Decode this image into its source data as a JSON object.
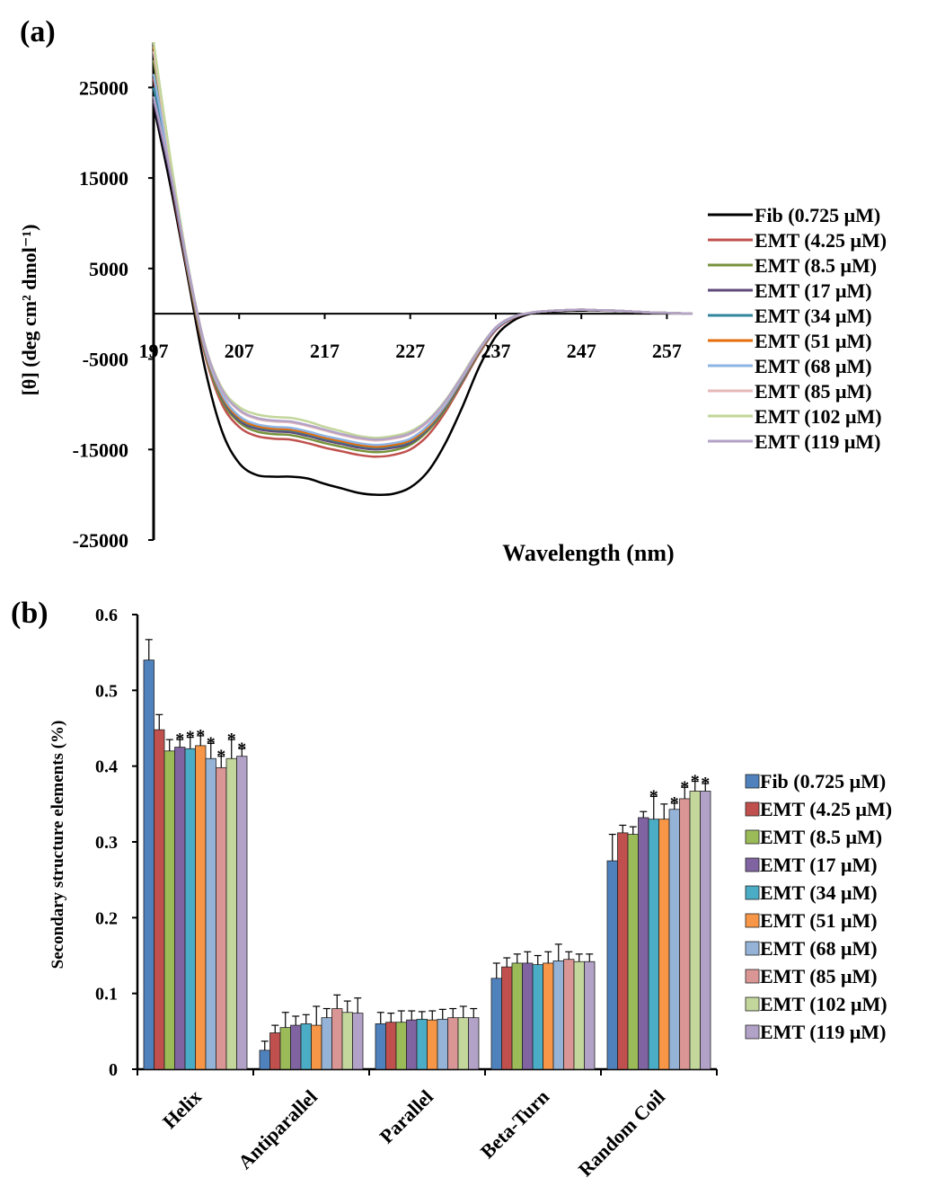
{
  "chart_data": [
    {
      "panel_label": "(a)",
      "type": "line",
      "xlabel": "Wavelength (nm)",
      "ylabel": "[θ] (deg cm² dmol⁻¹)",
      "xlim": [
        197,
        260
      ],
      "ylim": [
        -25000,
        30000
      ],
      "x_ticks": [
        "197",
        "207",
        "217",
        "227",
        "237",
        "247",
        "257"
      ],
      "y_ticks": [
        "25000",
        "15000",
        "5000",
        "-5000",
        "-15000",
        "-25000"
      ],
      "x": [
        197,
        199,
        201,
        203,
        205,
        207,
        209,
        211,
        213,
        215,
        217,
        219,
        221,
        223,
        225,
        227,
        229,
        231,
        233,
        235,
        237,
        239,
        241,
        243,
        245,
        247,
        249,
        251,
        253,
        255,
        257,
        260
      ],
      "legend_position": "right",
      "series": [
        {
          "name": "Fib (0.725 μM)",
          "color": "#000000",
          "values": [
            23000,
            14000,
            4000,
            -6000,
            -13000,
            -16500,
            -17800,
            -18000,
            -18000,
            -18200,
            -18800,
            -19300,
            -19800,
            -20000,
            -19900,
            -19200,
            -17500,
            -14500,
            -10500,
            -6000,
            -2500,
            -800,
            0,
            200,
            300,
            350,
            350,
            300,
            250,
            150,
            100,
            0
          ]
        },
        {
          "name": "EMT (4.25 μM)",
          "color": "#c0504d",
          "values": [
            26000,
            15000,
            4500,
            -4500,
            -10000,
            -12500,
            -13500,
            -13800,
            -13900,
            -14300,
            -14800,
            -15200,
            -15600,
            -15800,
            -15600,
            -15000,
            -13500,
            -11000,
            -7800,
            -4500,
            -1800,
            -500,
            100,
            300,
            400,
            450,
            400,
            350,
            250,
            150,
            100,
            0
          ]
        },
        {
          "name": "EMT (8.5 μM)",
          "color": "#77933c",
          "values": [
            28000,
            16000,
            4800,
            -4200,
            -9600,
            -12000,
            -13000,
            -13300,
            -13400,
            -13800,
            -14300,
            -14700,
            -15100,
            -15300,
            -15100,
            -14500,
            -13000,
            -10700,
            -7600,
            -4400,
            -1700,
            -450,
            100,
            300,
            400,
            450,
            400,
            350,
            250,
            150,
            100,
            0
          ]
        },
        {
          "name": "EMT (17 μM)",
          "color": "#604a7b",
          "values": [
            23500,
            15000,
            5000,
            -4000,
            -9300,
            -11800,
            -12700,
            -13000,
            -13100,
            -13500,
            -14000,
            -14400,
            -14800,
            -15000,
            -14800,
            -14300,
            -12800,
            -10500,
            -7500,
            -4300,
            -1700,
            -450,
            100,
            300,
            400,
            450,
            400,
            350,
            250,
            150,
            100,
            0
          ]
        },
        {
          "name": "EMT (34 μM)",
          "color": "#31859c",
          "values": [
            25000,
            15500,
            5000,
            -4000,
            -9200,
            -11600,
            -12500,
            -12800,
            -12900,
            -13300,
            -13800,
            -14200,
            -14600,
            -14800,
            -14600,
            -14100,
            -12700,
            -10400,
            -7400,
            -4200,
            -1600,
            -400,
            100,
            300,
            400,
            450,
            400,
            350,
            250,
            150,
            100,
            0
          ]
        },
        {
          "name": "EMT (51 μM)",
          "color": "#e46c0a",
          "values": [
            29500,
            16500,
            5200,
            -3900,
            -9100,
            -11500,
            -12400,
            -12700,
            -12800,
            -13200,
            -13700,
            -14100,
            -14500,
            -14700,
            -14500,
            -14000,
            -12600,
            -10300,
            -7300,
            -4200,
            -1600,
            -400,
            100,
            300,
            400,
            450,
            400,
            350,
            250,
            150,
            100,
            0
          ]
        },
        {
          "name": "EMT (68 μM)",
          "color": "#8eb4e3",
          "values": [
            26500,
            16000,
            5200,
            -3800,
            -8900,
            -11300,
            -12200,
            -12500,
            -12600,
            -13000,
            -13500,
            -13900,
            -14300,
            -14500,
            -14300,
            -13800,
            -12400,
            -10200,
            -7200,
            -4100,
            -1600,
            -400,
            100,
            300,
            400,
            450,
            400,
            350,
            250,
            150,
            100,
            0
          ]
        },
        {
          "name": "EMT (85 μM)",
          "color": "#e6b9b8",
          "values": [
            29000,
            16500,
            5300,
            -3600,
            -8500,
            -10700,
            -11600,
            -11900,
            -12000,
            -12400,
            -12900,
            -13400,
            -13800,
            -14000,
            -13800,
            -13300,
            -12000,
            -9900,
            -7000,
            -4000,
            -1500,
            -350,
            100,
            300,
            400,
            450,
            400,
            350,
            250,
            150,
            100,
            0
          ]
        },
        {
          "name": "EMT (102 μM)",
          "color": "#c3d69b",
          "values": [
            30000,
            17000,
            5500,
            -3400,
            -8200,
            -10300,
            -11100,
            -11400,
            -11500,
            -11900,
            -12500,
            -13000,
            -13500,
            -13700,
            -13500,
            -13000,
            -11800,
            -9700,
            -6900,
            -3900,
            -1500,
            -350,
            100,
            300,
            400,
            450,
            400,
            350,
            250,
            150,
            100,
            0
          ]
        },
        {
          "name": "EMT (119 μM)",
          "color": "#b3a2c7",
          "values": [
            24000,
            15500,
            5300,
            -3500,
            -8400,
            -10600,
            -11500,
            -11800,
            -11900,
            -12300,
            -12800,
            -13300,
            -13700,
            -13900,
            -13700,
            -13200,
            -11900,
            -9800,
            -7000,
            -4000,
            -1500,
            -350,
            100,
            300,
            400,
            450,
            400,
            350,
            250,
            150,
            100,
            0
          ]
        }
      ]
    },
    {
      "panel_label": "(b)",
      "type": "bar",
      "ylabel": "Secondary structure elements (%)",
      "ylim": [
        0,
        0.6
      ],
      "y_ticks": [
        "0",
        "0.1",
        "0.2",
        "0.3",
        "0.4",
        "0.5",
        "0.6"
      ],
      "categories": [
        "Helix",
        "Antiparallel",
        "Parallel",
        "Beta-Turn",
        "Random Coil"
      ],
      "legend_position": "right",
      "series": [
        {
          "name": "Fib (0.725 μM)",
          "color": "#4f81bd",
          "values": [
            0.54,
            0.025,
            0.06,
            0.12,
            0.275
          ],
          "errors": [
            0.027,
            0.012,
            0.015,
            0.02,
            0.035
          ],
          "stars": [
            "",
            "",
            "",
            "",
            ""
          ]
        },
        {
          "name": "EMT (4.25 μM)",
          "color": "#c0504d",
          "values": [
            0.448,
            0.048,
            0.062,
            0.135,
            0.312
          ],
          "errors": [
            0.02,
            0.01,
            0.012,
            0.012,
            0.01
          ],
          "stars": [
            "",
            "",
            "",
            "",
            ""
          ]
        },
        {
          "name": "EMT (8.5 μM)",
          "color": "#9bbb59",
          "values": [
            0.42,
            0.055,
            0.062,
            0.14,
            0.31
          ],
          "errors": [
            0.015,
            0.02,
            0.015,
            0.012,
            0.01
          ],
          "stars": [
            "",
            "",
            "",
            "",
            ""
          ]
        },
        {
          "name": "EMT (17 μM)",
          "color": "#8064a2",
          "values": [
            0.425,
            0.058,
            0.065,
            0.14,
            0.332
          ],
          "errors": [
            0.01,
            0.012,
            0.012,
            0.015,
            0.008
          ],
          "stars": [
            "*",
            "",
            "",
            "",
            ""
          ]
        },
        {
          "name": "EMT (34 μM)",
          "color": "#4bacc6",
          "values": [
            0.423,
            0.06,
            0.066,
            0.138,
            0.33
          ],
          "errors": [
            0.015,
            0.012,
            0.01,
            0.012,
            0.03
          ],
          "stars": [
            "*",
            "",
            "",
            "",
            "*"
          ]
        },
        {
          "name": "EMT (51 μM)",
          "color": "#f79646",
          "values": [
            0.427,
            0.058,
            0.065,
            0.14,
            0.33
          ],
          "errors": [
            0.013,
            0.025,
            0.012,
            0.015,
            0.02
          ],
          "stars": [
            "*",
            "",
            "",
            "",
            ""
          ]
        },
        {
          "name": "EMT (68 μM)",
          "color": "#95b3d7",
          "values": [
            0.41,
            0.068,
            0.066,
            0.143,
            0.343
          ],
          "errors": [
            0.02,
            0.012,
            0.013,
            0.022,
            0.008
          ],
          "stars": [
            "*",
            "",
            "",
            "",
            "*"
          ]
        },
        {
          "name": "EMT (85 μM)",
          "color": "#d99694",
          "values": [
            0.398,
            0.08,
            0.068,
            0.145,
            0.357
          ],
          "errors": [
            0.015,
            0.018,
            0.012,
            0.01,
            0.015
          ],
          "stars": [
            "*",
            "",
            "",
            "",
            "*"
          ]
        },
        {
          "name": "EMT (102 μM)",
          "color": "#c3d69b",
          "values": [
            0.41,
            0.075,
            0.068,
            0.142,
            0.367
          ],
          "errors": [
            0.025,
            0.015,
            0.015,
            0.01,
            0.013
          ],
          "stars": [
            "*",
            "",
            "",
            "",
            "*"
          ]
        },
        {
          "name": "EMT (119 μM)",
          "color": "#b2a2c7",
          "values": [
            0.413,
            0.074,
            0.068,
            0.142,
            0.367
          ],
          "errors": [
            0.01,
            0.02,
            0.012,
            0.01,
            0.01
          ],
          "stars": [
            "*",
            "",
            "",
            "",
            "*"
          ]
        }
      ]
    }
  ]
}
